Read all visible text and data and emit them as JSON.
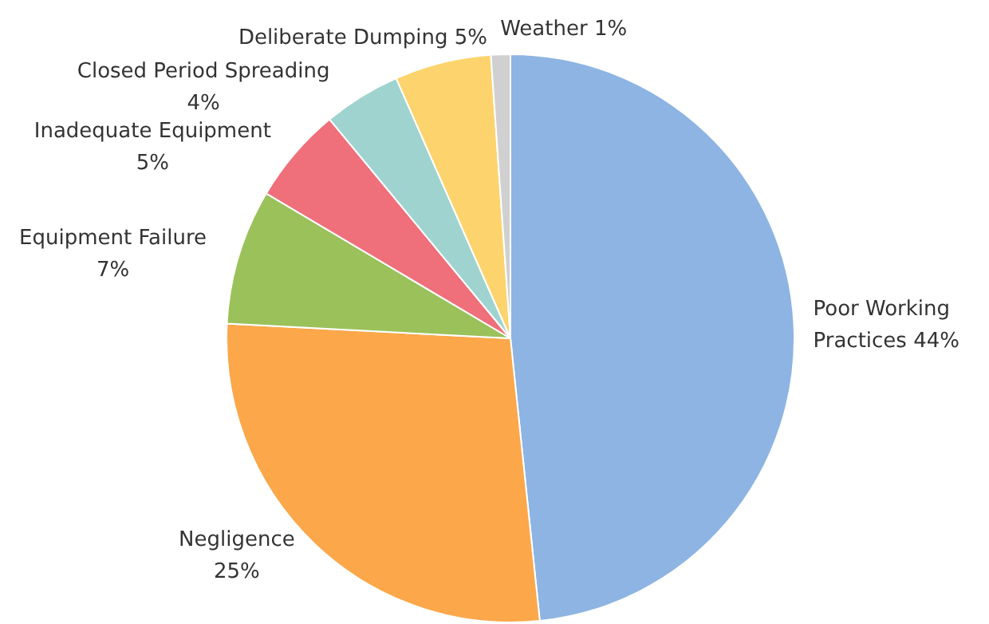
{
  "chart_data": {
    "type": "pie",
    "categories": [
      "Poor Working Practices",
      "Negligence",
      "Equipment Failure",
      "Inadequate Equipment",
      "Closed Period Spreading",
      "Deliberate Dumping",
      "Weather"
    ],
    "values": [
      44,
      25,
      7,
      5,
      4,
      5,
      1
    ],
    "colors": [
      "#8db4e2",
      "#fba74a",
      "#9bc15a",
      "#ef6f7b",
      "#9fd3cf",
      "#fdd36e",
      "#d0d0d0"
    ],
    "value_labels": [
      "44%",
      "25%",
      "7%",
      "5%",
      "4%",
      "5%",
      "1%"
    ]
  }
}
